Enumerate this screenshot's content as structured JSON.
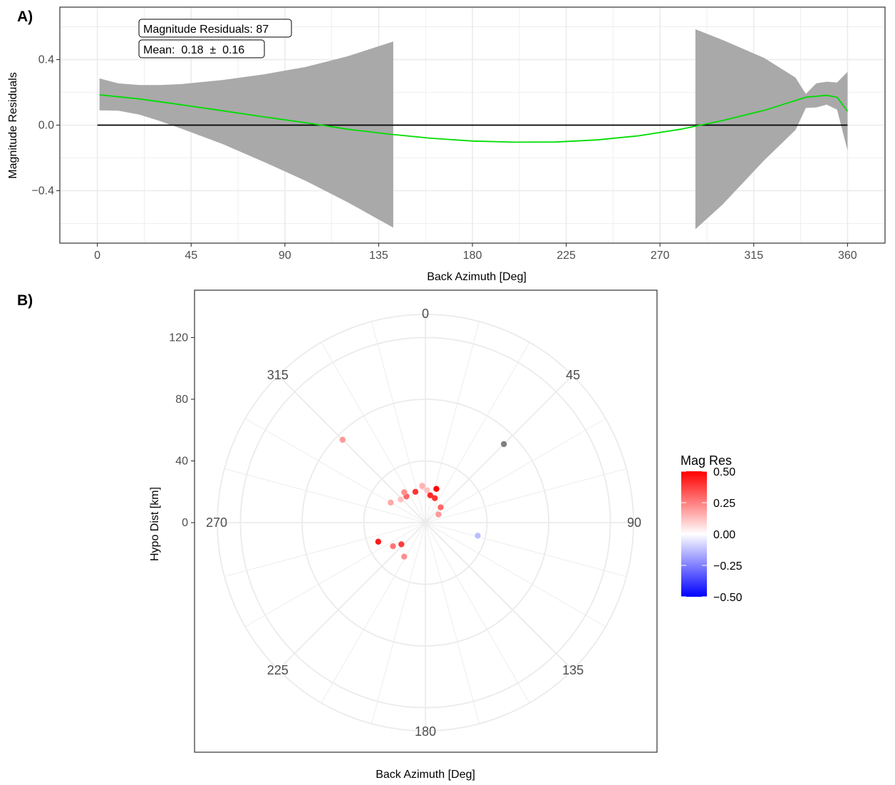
{
  "panel_a": {
    "tag": "A)",
    "annotation_count": "Magnitude Residuals: 87",
    "annotation_mean": "Mean:  0.18  ±  0.16"
  },
  "panel_b": {
    "tag": "B)"
  },
  "legend": {
    "title": "Mag Res",
    "colors": {
      "low": "#0000ff",
      "mid": "#ffffff",
      "high": "#ff0000"
    },
    "labels": [
      "0.50",
      "0.25",
      "0.00",
      "−0.25",
      "−0.50"
    ]
  },
  "colors": {
    "ribbon": "#a9a9a9",
    "smooth_line": "#00dd00",
    "zero_line": "#000000",
    "grid": "#ebebeb",
    "na_point": "#808080"
  },
  "chart_data": [
    {
      "type": "line",
      "title": "",
      "xlabel": "Back Azimuth [Deg]",
      "ylabel": "Magnitude Residuals",
      "xlim": [
        -18,
        378
      ],
      "ylim": [
        -0.72,
        0.72
      ],
      "x_ticks": [
        0,
        45,
        90,
        135,
        180,
        225,
        270,
        315,
        360
      ],
      "x_tick_labels": [
        "0",
        "45",
        "90",
        "135",
        "180",
        "225",
        "270",
        "315",
        "360"
      ],
      "y_ticks": [
        -0.4,
        0.0,
        0.4
      ],
      "y_tick_labels": [
        "−0.4",
        "0.0",
        "0.4"
      ],
      "grid": true,
      "reference_line": {
        "y": 0,
        "x_from": 0,
        "x_to": 360
      },
      "series": [
        {
          "name": "",
          "kind": "smooth",
          "x": [
            1,
            20,
            40,
            60,
            80,
            100,
            120,
            140,
            160,
            180,
            200,
            220,
            240,
            260,
            280,
            300,
            320,
            340,
            350,
            355,
            360
          ],
          "y": [
            0.185,
            0.16,
            0.125,
            0.088,
            0.05,
            0.015,
            -0.025,
            -0.055,
            -0.08,
            -0.097,
            -0.104,
            -0.103,
            -0.09,
            -0.065,
            -0.025,
            0.028,
            0.09,
            0.17,
            0.182,
            0.17,
            0.085
          ]
        }
      ],
      "ribbon": [
        {
          "x": [
            1,
            10,
            20,
            30,
            40,
            60,
            80,
            100,
            120,
            142
          ],
          "upper": [
            0.285,
            0.255,
            0.245,
            0.245,
            0.25,
            0.275,
            0.31,
            0.355,
            0.42,
            0.51
          ],
          "lower": [
            0.09,
            0.088,
            0.065,
            0.025,
            -0.02,
            -0.115,
            -0.225,
            -0.34,
            -0.47,
            -0.625
          ]
        },
        {
          "x": [
            287,
            300,
            320,
            335,
            340,
            345,
            350,
            355,
            360
          ],
          "upper": [
            0.585,
            0.52,
            0.41,
            0.29,
            0.19,
            0.255,
            0.265,
            0.26,
            0.325
          ],
          "lower": [
            -0.635,
            -0.485,
            -0.215,
            -0.03,
            0.105,
            0.108,
            0.125,
            0.095,
            -0.155
          ]
        }
      ]
    },
    {
      "type": "scatter",
      "coordinate_system": "polar",
      "title": "",
      "xlabel": "Back Azimuth [Deg]",
      "ylabel": "Hypo Dist [km]",
      "theta_labels": [
        "0",
        "45",
        "90",
        "135",
        "180",
        "225",
        "270",
        "315"
      ],
      "r_ticks": [
        0,
        40,
        80,
        120
      ],
      "r_tick_labels": [
        "0",
        "40",
        "80",
        "120"
      ],
      "r_max": 135,
      "color_scale": {
        "name": "Mag Res",
        "limits": [
          -0.5,
          0.5
        ]
      },
      "points": [
        {
          "azimuth": 45,
          "distance": 72,
          "value": null
        },
        {
          "azimuth": 315,
          "distance": 76,
          "value": 0.2
        },
        {
          "azimuth": 104,
          "distance": 35,
          "value": -0.13
        },
        {
          "azimuth": 248,
          "distance": 33,
          "value": 0.45
        },
        {
          "azimuth": 234,
          "distance": 26,
          "value": 0.27
        },
        {
          "azimuth": 212,
          "distance": 26,
          "value": 0.22
        },
        {
          "azimuth": 228,
          "distance": 21,
          "value": 0.38
        },
        {
          "azimuth": 300,
          "distance": 26,
          "value": 0.17
        },
        {
          "azimuth": 313,
          "distance": 22,
          "value": 0.12
        },
        {
          "azimuth": 324,
          "distance": 21,
          "value": 0.3
        },
        {
          "azimuth": 342,
          "distance": 21,
          "value": 0.4
        },
        {
          "azimuth": 356,
          "distance": 23,
          "value": 0.08
        },
        {
          "azimuth": 3,
          "distance": 21,
          "value": 0.12
        },
        {
          "azimuth": 10,
          "distance": 18,
          "value": 0.42
        },
        {
          "azimuth": 21,
          "distance": 17,
          "value": 0.4
        },
        {
          "azimuth": 18,
          "distance": 23,
          "value": 0.5
        },
        {
          "azimuth": 45,
          "distance": 14,
          "value": 0.3
        },
        {
          "azimuth": 58,
          "distance": 10,
          "value": 0.2
        },
        {
          "azimuth": 355,
          "distance": 24,
          "value": 0.15
        },
        {
          "azimuth": 325,
          "distance": 24,
          "value": 0.22
        }
      ]
    }
  ]
}
